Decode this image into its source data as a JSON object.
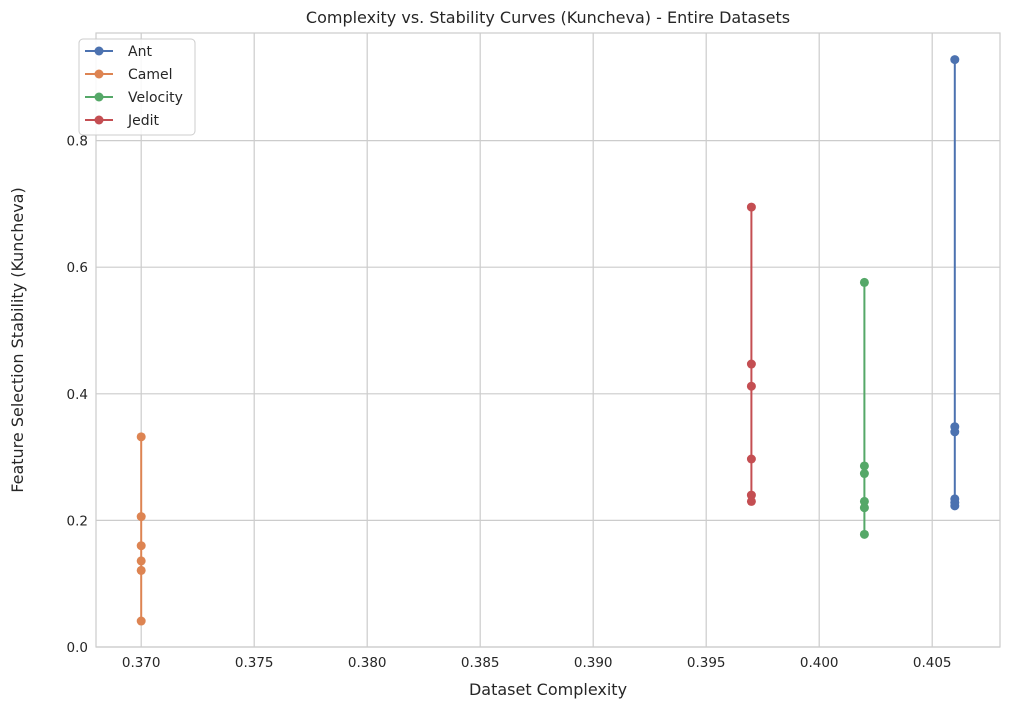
{
  "chart_data": {
    "type": "line",
    "title": "Complexity vs. Stability Curves (Kuncheva) - Entire Datasets",
    "xlabel": "Dataset Complexity",
    "ylabel": "Feature Selection Stability (Kuncheva)",
    "xlim": [
      0.368,
      0.408
    ],
    "ylim": [
      0.0,
      0.97
    ],
    "xticks": [
      0.37,
      0.375,
      0.38,
      0.385,
      0.39,
      0.395,
      0.4,
      0.405
    ],
    "xtick_labels": [
      "0.370",
      "0.375",
      "0.380",
      "0.385",
      "0.390",
      "0.395",
      "0.400",
      "0.405"
    ],
    "yticks": [
      0.0,
      0.2,
      0.4,
      0.6,
      0.8
    ],
    "ytick_labels": [
      "0.0",
      "0.2",
      "0.4",
      "0.6",
      "0.8"
    ],
    "grid": true,
    "legend_position": "top-left",
    "series": [
      {
        "name": "Ant",
        "color": "#4c72b0",
        "x": [
          0.406,
          0.406,
          0.406,
          0.406,
          0.406,
          0.406
        ],
        "y": [
          0.928,
          0.348,
          0.34,
          0.234,
          0.228,
          0.223
        ]
      },
      {
        "name": "Camel",
        "color": "#dd8452",
        "x": [
          0.37,
          0.37,
          0.37,
          0.37,
          0.37,
          0.37
        ],
        "y": [
          0.332,
          0.206,
          0.16,
          0.136,
          0.121,
          0.041
        ]
      },
      {
        "name": "Velocity",
        "color": "#55a868",
        "x": [
          0.402,
          0.402,
          0.402,
          0.402,
          0.402,
          0.402
        ],
        "y": [
          0.576,
          0.286,
          0.274,
          0.23,
          0.22,
          0.178
        ]
      },
      {
        "name": "Jedit",
        "color": "#c44e52",
        "x": [
          0.397,
          0.397,
          0.397,
          0.397,
          0.397,
          0.397
        ],
        "y": [
          0.695,
          0.447,
          0.412,
          0.297,
          0.24,
          0.23
        ]
      }
    ]
  }
}
